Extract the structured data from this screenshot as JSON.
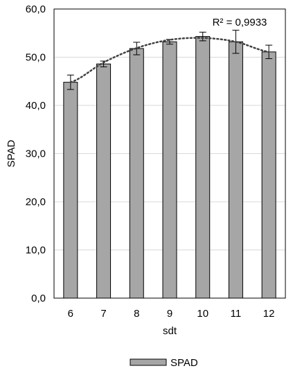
{
  "chart_data": {
    "type": "bar",
    "categories": [
      "6",
      "7",
      "8",
      "9",
      "10",
      "11",
      "12"
    ],
    "series": [
      {
        "name": "SPAD",
        "values": [
          44.8,
          48.6,
          51.8,
          53.2,
          54.3,
          53.2,
          51.1
        ],
        "errors": [
          1.5,
          0.6,
          1.3,
          0.5,
          0.9,
          2.4,
          1.4
        ]
      }
    ],
    "xlabel": "sdt",
    "ylabel": "SPAD",
    "ylim": [
      0,
      60
    ],
    "yticks": [
      0,
      10,
      20,
      30,
      40,
      50,
      60
    ],
    "ytick_labels": [
      "0,0",
      "10,0",
      "20,0",
      "30,0",
      "40,0",
      "50,0",
      "60,0"
    ],
    "trendline": {
      "type": "polynomial",
      "style": "dotted",
      "points": [
        44.8,
        48.9,
        51.9,
        53.6,
        54.0,
        53.2,
        51.1
      ],
      "r2_label": "R² = 0,9933"
    },
    "legend": {
      "placement": "bottom",
      "label": "SPAD"
    },
    "grid": true,
    "colors": {
      "bar": "#a6a6a6",
      "bar_edge": "#000000",
      "grid": "#d9d9d9",
      "trend": "#404040"
    }
  }
}
